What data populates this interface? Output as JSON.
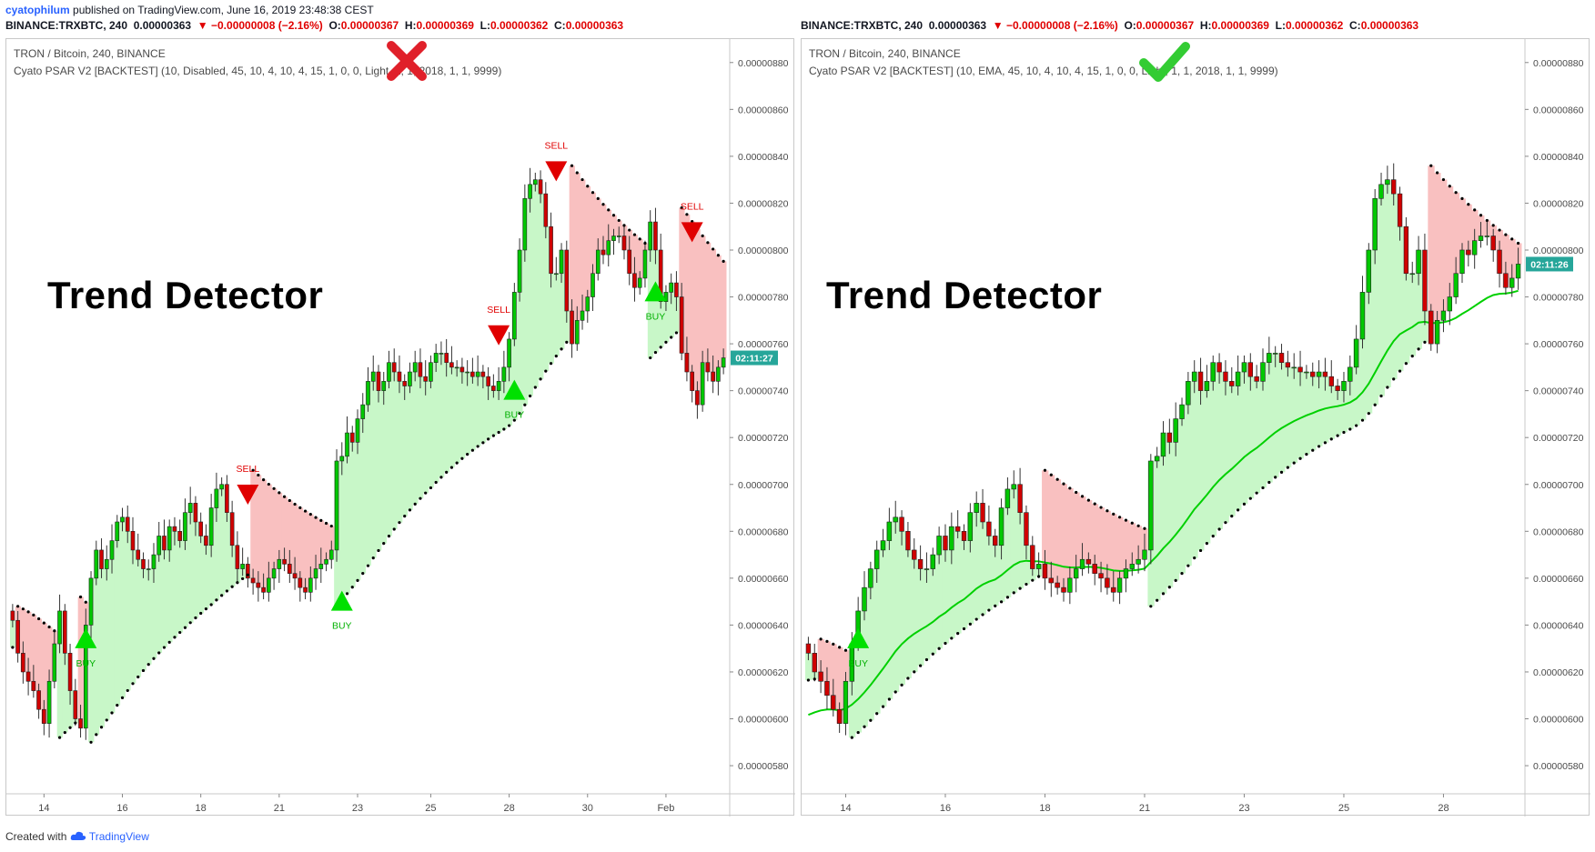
{
  "publisher": {
    "user": "cyatophilum",
    "text": " published on TradingView.com, June 16, 2019 23:48:38 CEST"
  },
  "symbol_bar": {
    "symbol": "BINANCE:TRXBTC, 240",
    "last": "0.00000363",
    "arrow": "▼",
    "change": "−0.00000008 (−2.16%)",
    "o_label": "O:",
    "o": "0.00000367",
    "h_label": "H:",
    "h": "0.00000369",
    "l_label": "L:",
    "l": "0.00000362",
    "c_label": "C:",
    "c": "0.00000363"
  },
  "footer": {
    "text": "Created with",
    "brand": "TradingView"
  },
  "colors": {
    "up": "#00c800",
    "down": "#d00000",
    "bull_fill": "#c8f7c8",
    "bear_fill": "#f9c0c0",
    "psar": "#000000",
    "accent": "#2962ff"
  },
  "left": {
    "title": "TRON / Bitcoin, 240, BINANCE",
    "indicator": "Cyato PSAR V2 [BACKTEST] (10, Disabled, 45, 10, 4, 10, 4, 15, 1, 0, 0, Light, 1, 1, 2018, 1, 1, 9999)",
    "big_text": "Trend Detector",
    "mark": "cross",
    "price_tag": "02:11:27",
    "x_ticks": [
      "14",
      "16",
      "18",
      "21",
      "23",
      "25",
      "28",
      "30",
      "Feb"
    ]
  },
  "right": {
    "title": "TRON / Bitcoin, 240, BINANCE",
    "indicator": "Cyato PSAR V2 [BACKTEST] (10, EMA, 45, 10, 4, 10, 4, 15, 1, 0, 0, Light, 1, 1, 2018, 1, 1, 9999)",
    "big_text": "Trend Detector",
    "mark": "check",
    "price_tag": "02:11:26",
    "x_ticks": [
      "14",
      "16",
      "18",
      "21",
      "23",
      "25",
      "28"
    ]
  },
  "chart_data": [
    {
      "type": "candlestick",
      "title": "TRON / Bitcoin, 240, BINANCE",
      "y_ticks": [
        "0.00000880",
        "0.00000860",
        "0.00000840",
        "0.00000820",
        "0.00000800",
        "0.00000780",
        "0.00000760",
        "0.00000740",
        "0.00000720",
        "0.00000700",
        "0.00000680",
        "0.00000660",
        "0.00000640",
        "0.00000620",
        "0.00000600",
        "0.00000580"
      ],
      "ylim": [
        5.68e-06,
        8.9e-06
      ],
      "close": [
        642,
        628,
        620,
        616,
        612,
        604,
        598,
        616,
        632,
        646,
        628,
        612,
        600,
        596,
        640,
        660,
        672,
        664,
        668,
        676,
        684,
        686,
        680,
        672,
        668,
        664,
        664,
        670,
        678,
        672,
        682,
        680,
        676,
        688,
        692,
        684,
        678,
        674,
        690,
        698,
        700,
        688,
        674,
        664,
        666,
        660,
        658,
        656,
        654,
        660,
        664,
        668,
        666,
        662,
        660,
        656,
        654,
        660,
        664,
        666,
        668,
        672,
        710,
        712,
        722,
        718,
        728,
        734,
        744,
        748,
        740,
        744,
        752,
        748,
        744,
        742,
        748,
        752,
        746,
        744,
        752,
        756,
        756,
        752,
        750,
        750,
        748,
        748,
        746,
        748,
        746,
        742,
        740,
        744,
        750,
        762,
        782,
        800,
        822,
        828,
        830,
        824,
        810,
        790,
        790,
        800,
        774,
        760,
        770,
        774,
        780,
        790,
        800,
        798,
        804,
        806,
        806,
        800,
        790,
        784,
        788,
        800,
        812,
        800,
        778,
        782,
        786,
        780,
        756,
        748,
        740,
        734,
        752,
        748,
        744,
        750,
        754
      ],
      "trades": [
        {
          "label": "BUY",
          "bar": 14,
          "price": 634
        },
        {
          "label": "SELL",
          "bar": 45,
          "price": 696
        },
        {
          "label": "BUY",
          "bar": 63,
          "price": 650
        },
        {
          "label": "SELL",
          "bar": 93,
          "price": 764
        },
        {
          "label": "BUY",
          "bar": 96,
          "price": 740
        },
        {
          "label": "SELL",
          "bar": 104,
          "price": 834
        },
        {
          "label": "BUY",
          "bar": 123,
          "price": 782
        },
        {
          "label": "SELL",
          "bar": 130,
          "price": 808
        }
      ],
      "last_price_tag": "02:11:27"
    },
    {
      "type": "candlestick",
      "title": "TRON / Bitcoin, 240, BINANCE",
      "y_ticks": [
        "0.00000880",
        "0.00000860",
        "0.00000840",
        "0.00000820",
        "0.00000800",
        "0.00000780",
        "0.00000760",
        "0.00000740",
        "0.00000720",
        "0.00000700",
        "0.00000680",
        "0.00000660",
        "0.00000640",
        "0.00000620",
        "0.00000600",
        "0.00000580"
      ],
      "ylim": [
        5.68e-06,
        8.9e-06
      ],
      "close": [
        628,
        620,
        616,
        610,
        604,
        598,
        616,
        632,
        646,
        656,
        664,
        672,
        676,
        684,
        686,
        680,
        672,
        668,
        664,
        664,
        670,
        678,
        672,
        682,
        680,
        676,
        688,
        692,
        684,
        678,
        674,
        690,
        698,
        700,
        688,
        674,
        664,
        666,
        660,
        658,
        656,
        654,
        660,
        664,
        668,
        666,
        662,
        660,
        656,
        654,
        660,
        664,
        666,
        668,
        672,
        710,
        712,
        722,
        718,
        728,
        734,
        744,
        748,
        740,
        744,
        752,
        748,
        744,
        742,
        748,
        752,
        746,
        744,
        752,
        756,
        756,
        752,
        750,
        750,
        748,
        748,
        746,
        748,
        746,
        742,
        740,
        744,
        750,
        762,
        782,
        800,
        822,
        828,
        830,
        824,
        810,
        790,
        790,
        800,
        774,
        760,
        770,
        774,
        780,
        790,
        800,
        798,
        804,
        806,
        806,
        800,
        790,
        784,
        788,
        794
      ],
      "ema_from": 600,
      "trades": [
        {
          "label": "BUY",
          "bar": 8,
          "price": 634
        }
      ],
      "last_price_tag": "02:11:26"
    }
  ]
}
